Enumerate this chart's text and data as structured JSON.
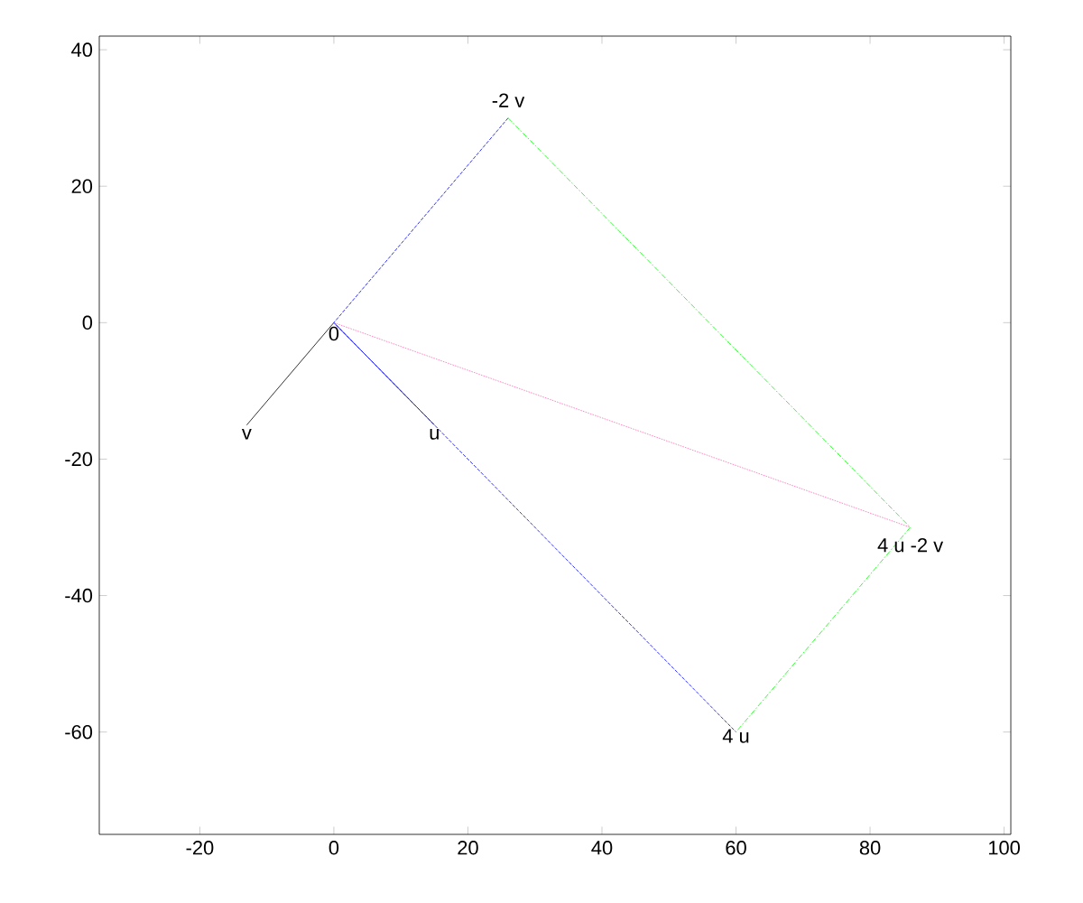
{
  "chart_data": {
    "type": "line",
    "xlim": [
      -35,
      101
    ],
    "ylim": [
      -75,
      42
    ],
    "xticks": [
      -20,
      0,
      20,
      40,
      60,
      80,
      100
    ],
    "yticks": [
      -60,
      -40,
      -20,
      0,
      20,
      40
    ],
    "marker": "none",
    "series": [
      {
        "color": "#000000",
        "line_style": "solid",
        "x": [
          0,
          -13
        ],
        "values": [
          0,
          -15
        ]
      },
      {
        "color": "#0000ff",
        "line_style": "solid",
        "x": [
          0,
          15
        ],
        "values": [
          0,
          -15
        ]
      },
      {
        "color": "#0000ff",
        "line_style": "dashed",
        "x": [
          26,
          0,
          60
        ],
        "values": [
          30,
          0,
          -60
        ]
      },
      {
        "color": "#00ff00",
        "line_style": "dashdot",
        "x": [
          26,
          86,
          60
        ],
        "values": [
          30,
          -30,
          -60
        ]
      },
      {
        "color": "#ff69b4",
        "line_style": "dotted",
        "x": [
          0,
          86
        ],
        "values": [
          0,
          -30
        ]
      }
    ],
    "annotations": [
      {
        "text": "0",
        "x": 0,
        "y": 0
      },
      {
        "text": "v",
        "x": -13,
        "y": -15
      },
      {
        "text": "u",
        "x": 15,
        "y": -15
      },
      {
        "text": "-2 v",
        "x": 26,
        "y": 31
      },
      {
        "text": "4 u -2 v",
        "x": 86,
        "y": -31
      },
      {
        "text": "4 u",
        "x": 60,
        "y": -59
      }
    ]
  }
}
